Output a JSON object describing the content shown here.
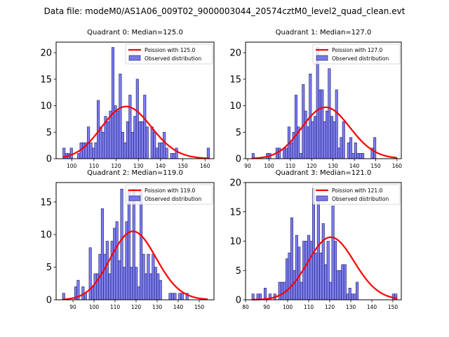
{
  "suptitle": "Data file: modeM0/AS1A06_009T02_9000003044_20574cztM0_level2_quad_clean.evt",
  "colors": {
    "bar_fill": "#7777ee",
    "bar_edge": "#1a1a66",
    "poisson_line": "#ff0000"
  },
  "chart_data": [
    {
      "type": "bar",
      "title": "Quadrant 0: Median=125.0",
      "legend": [
        "Poission with 125.0",
        "Observed distribution"
      ],
      "legend_position": "top-right",
      "xlim": [
        93,
        164
      ],
      "ylim": [
        0,
        22
      ],
      "xticks": [
        100,
        110,
        120,
        130,
        140,
        150,
        160
      ],
      "yticks": [
        0,
        5,
        10,
        15,
        20
      ],
      "bin_width": 1.1,
      "bins": [
        96,
        97.1,
        98.2,
        99.3,
        100.4,
        101.5,
        102.6,
        103.7,
        104.8,
        105.9,
        107,
        108.1,
        109.2,
        110.3,
        111.4,
        112.5,
        113.6,
        114.7,
        115.8,
        116.9,
        118,
        119.1,
        120.2,
        121.3,
        122.4,
        123.5,
        124.6,
        125.7,
        126.8,
        127.9,
        129,
        130.1,
        131.2,
        132.3,
        133.4,
        134.5,
        135.6,
        136.7,
        137.8,
        138.9,
        140,
        141.1,
        142.2,
        143.3,
        144.4,
        145.5,
        146.6,
        147.7,
        148.8,
        149.9,
        151,
        152.1,
        153.2,
        154.3,
        155.4,
        156.5,
        157.6,
        158.7,
        159.8,
        160.9
      ],
      "counts": [
        2,
        1,
        1,
        2,
        0,
        0,
        1,
        3,
        3,
        3,
        6,
        3,
        2,
        3,
        11,
        6,
        5,
        8,
        7,
        9,
        21,
        10,
        9,
        16,
        5,
        3,
        7,
        12,
        5,
        8,
        15,
        7,
        7,
        12,
        6,
        0,
        6,
        5,
        2,
        3,
        3,
        5,
        2,
        0,
        1,
        1,
        2,
        0,
        0,
        0,
        0,
        0,
        0,
        0,
        0,
        0,
        0,
        0,
        0,
        2
      ],
      "poisson_mean": 125.0
    },
    {
      "type": "bar",
      "title": "Quadrant 1: Median=127.0",
      "legend": [
        "Poission with 127.0",
        "Observed distribution"
      ],
      "legend_position": "top-right",
      "xlim": [
        89,
        162
      ],
      "ylim": [
        0,
        22
      ],
      "xticks": [
        90,
        100,
        110,
        120,
        130,
        140,
        150,
        160
      ],
      "yticks": [
        0,
        5,
        10,
        15,
        20
      ],
      "bin_width": 1.12,
      "bins": [
        92,
        93.1,
        94.2,
        95.4,
        96.5,
        97.6,
        98.7,
        99.8,
        100.9,
        102.1,
        103.2,
        104.3,
        105.4,
        106.5,
        107.6,
        108.8,
        109.9,
        111,
        112.1,
        113.2,
        114.3,
        115.5,
        116.6,
        117.7,
        118.8,
        119.9,
        121,
        122.2,
        123.3,
        124.4,
        125.5,
        126.6,
        127.7,
        128.9,
        130,
        131.1,
        132.2,
        133.3,
        134.4,
        135.6,
        136.7,
        137.8,
        138.9,
        140,
        141.1,
        142.3,
        143.4,
        144.5,
        145.6,
        146.7,
        147.8,
        149,
        150.1,
        151.2,
        152.3,
        153.4,
        154.5,
        155.7,
        156.8,
        157.9,
        159
      ],
      "counts": [
        1,
        0,
        0,
        0,
        0,
        0,
        1,
        1,
        0,
        0,
        2,
        2,
        0,
        2,
        2,
        6,
        3,
        5,
        12,
        6,
        1,
        14,
        9,
        6,
        16,
        7,
        8,
        21,
        13,
        13,
        7,
        9,
        17,
        8,
        7,
        13,
        2,
        4,
        7,
        0,
        3,
        4,
        1,
        3,
        1,
        1,
        1,
        0,
        0,
        0,
        2,
        4,
        0,
        0,
        0,
        0,
        0,
        0,
        0,
        0,
        0
      ],
      "poisson_mean": 127.0
    },
    {
      "type": "bar",
      "title": "Quadrant 2: Median=119.0",
      "legend": [
        "Poission with 119.0",
        "Observed distribution"
      ],
      "legend_position": "top-right",
      "xlim": [
        82,
        157
      ],
      "ylim": [
        0,
        18
      ],
      "xticks": [
        90,
        100,
        110,
        120,
        130,
        140,
        150
      ],
      "yticks": [
        0,
        5,
        10,
        15
      ],
      "bin_width": 1.15,
      "bins": [
        85,
        86.15,
        87.3,
        88.45,
        89.6,
        90.75,
        91.9,
        93.05,
        94.2,
        95.35,
        96.5,
        97.65,
        98.8,
        99.95,
        101.1,
        102.25,
        103.4,
        104.55,
        105.7,
        106.85,
        108,
        109.15,
        110.3,
        111.45,
        112.6,
        113.75,
        114.9,
        116.05,
        117.2,
        118.35,
        119.5,
        120.65,
        121.8,
        122.95,
        124.1,
        125.25,
        126.4,
        127.55,
        128.7,
        129.85,
        131,
        132.15,
        133.3,
        134.45,
        135.6,
        136.75,
        137.9,
        139.05,
        140.2,
        141.35,
        142.5,
        143.65,
        144.8,
        145.95,
        147.1,
        148.25,
        149.4,
        150.55,
        151.7,
        152.85
      ],
      "counts": [
        1,
        0,
        0,
        0,
        0,
        2,
        3,
        0,
        2,
        1,
        0,
        8,
        2,
        4,
        4,
        7,
        14,
        7,
        9,
        4,
        9,
        11,
        12,
        6,
        17,
        5,
        12,
        17,
        5,
        17,
        5,
        2,
        17,
        7,
        4,
        7,
        4,
        7,
        5,
        4,
        3,
        0,
        0,
        0,
        1,
        1,
        1,
        0,
        1,
        1,
        0,
        1,
        0,
        0,
        0,
        0,
        0,
        0,
        0,
        0
      ],
      "poisson_mean": 119.0
    },
    {
      "type": "bar",
      "title": "Quadrant 3: Median=121.0",
      "legend": [
        "Poission with 121.0",
        "Observed distribution"
      ],
      "legend_position": "top-right",
      "xlim": [
        80,
        154
      ],
      "ylim": [
        0,
        20
      ],
      "xticks": [
        80,
        90,
        100,
        110,
        120,
        130,
        140,
        150
      ],
      "yticks": [
        0,
        5,
        10,
        15,
        20
      ],
      "bin_width": 1.15,
      "bins": [
        83,
        84.15,
        85.3,
        86.45,
        87.6,
        88.75,
        89.9,
        91.05,
        92.2,
        93.35,
        94.5,
        95.65,
        96.8,
        97.95,
        99.1,
        100.25,
        101.4,
        102.55,
        103.7,
        104.85,
        106,
        107.15,
        108.3,
        109.45,
        110.6,
        111.75,
        112.9,
        114.05,
        115.2,
        116.35,
        117.5,
        118.65,
        119.8,
        120.95,
        122.1,
        123.25,
        124.4,
        125.55,
        126.7,
        127.85,
        129,
        130.15,
        131.3,
        132.45,
        133.6,
        134.75,
        135.9,
        137.05,
        138.2,
        139.35,
        140.5,
        141.65,
        142.8,
        143.95,
        145.1,
        146.25,
        147.4,
        148.55,
        149.7,
        150.85
      ],
      "counts": [
        1,
        0,
        1,
        1,
        0,
        2,
        0,
        1,
        0,
        1,
        0,
        3,
        3,
        3,
        7,
        8,
        14,
        5,
        11,
        9,
        3,
        10,
        10,
        11,
        10,
        19,
        8,
        17,
        8,
        13,
        6,
        10,
        3,
        16,
        10,
        5,
        5,
        6,
        6,
        1,
        2,
        1,
        1,
        3,
        0,
        0,
        0,
        0,
        0,
        0,
        0,
        0,
        0,
        0,
        0,
        0,
        0,
        0,
        1,
        1
      ],
      "poisson_mean": 121.0
    }
  ]
}
